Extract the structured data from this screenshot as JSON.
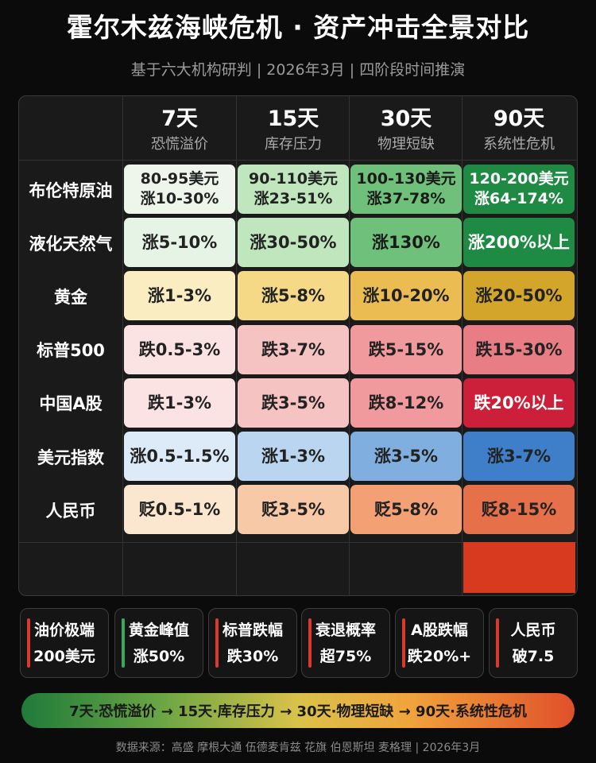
{
  "header": {
    "title": "霍尔木兹海峡危机 · 资产冲击全景对比",
    "subtitle": "基于六大机构研判 | 2026年3月 | 四阶段时间推演"
  },
  "columns": [
    {
      "day": "7天",
      "phase": "恐慌溢价"
    },
    {
      "day": "15天",
      "phase": "库存压力"
    },
    {
      "day": "30天",
      "phase": "物理短缺"
    },
    {
      "day": "90天",
      "phase": "系统性危机"
    }
  ],
  "rows": [
    {
      "label": "布伦特原油",
      "cells": [
        {
          "l1": "80-95美元",
          "l2": "涨10-30%",
          "bg": "#eef6ec",
          "fg": "#222"
        },
        {
          "l1": "90-110美元",
          "l2": "涨23-51%",
          "bg": "#bfe6bd",
          "fg": "#222"
        },
        {
          "l1": "100-130美元",
          "l2": "涨37-78%",
          "bg": "#6ec07a",
          "fg": "#1a1a1a"
        },
        {
          "l1": "120-200美元",
          "l2": "涨64-174%",
          "bg": "#1f8a44",
          "fg": "#ffffff"
        }
      ]
    },
    {
      "label": "液化天然气",
      "cells": [
        {
          "l1": "涨5-10%",
          "bg": "#e6f4e6",
          "fg": "#222"
        },
        {
          "l1": "涨30-50%",
          "bg": "#bfe6bd",
          "fg": "#222"
        },
        {
          "l1": "涨130%",
          "bg": "#6ec07a",
          "fg": "#1a1a1a"
        },
        {
          "l1": "涨200%以上",
          "bg": "#1f8a44",
          "fg": "#ffffff"
        }
      ]
    },
    {
      "label": "黄金",
      "cells": [
        {
          "l1": "涨1-3%",
          "bg": "#fbedc2",
          "fg": "#222"
        },
        {
          "l1": "涨5-8%",
          "bg": "#f6d986",
          "fg": "#222"
        },
        {
          "l1": "涨10-20%",
          "bg": "#ebbc52",
          "fg": "#222"
        },
        {
          "l1": "涨20-50%",
          "bg": "#d3a52a",
          "fg": "#222"
        }
      ]
    },
    {
      "label": "标普500",
      "cells": [
        {
          "l1": "跌0.5-3%",
          "bg": "#fbe3e3",
          "fg": "#222"
        },
        {
          "l1": "跌3-7%",
          "bg": "#f6c3c3",
          "fg": "#222"
        },
        {
          "l1": "跌5-15%",
          "bg": "#f09a9e",
          "fg": "#222"
        },
        {
          "l1": "跌15-30%",
          "bg": "#e87d86",
          "fg": "#222"
        }
      ]
    },
    {
      "label": "中国A股",
      "cells": [
        {
          "l1": "跌1-3%",
          "bg": "#fbe3e3",
          "fg": "#222"
        },
        {
          "l1": "跌3-5%",
          "bg": "#f6c3c3",
          "fg": "#222"
        },
        {
          "l1": "跌8-12%",
          "bg": "#f09a9e",
          "fg": "#222"
        },
        {
          "l1": "跌20%以上",
          "bg": "#cc1f3a",
          "fg": "#ffffff"
        }
      ]
    },
    {
      "label": "美元指数",
      "cells": [
        {
          "l1": "涨0.5-1.5%",
          "bg": "#ddeaf8",
          "fg": "#222"
        },
        {
          "l1": "涨1-3%",
          "bg": "#b9d5f0",
          "fg": "#222"
        },
        {
          "l1": "涨3-5%",
          "bg": "#7faedf",
          "fg": "#222"
        },
        {
          "l1": "涨3-7%",
          "bg": "#3f7ec8",
          "fg": "#222"
        }
      ]
    },
    {
      "label": "人民币",
      "cells": [
        {
          "l1": "贬0.5-1%",
          "bg": "#fbe6d0",
          "fg": "#222"
        },
        {
          "l1": "贬3-5%",
          "bg": "#f8c9a6",
          "fg": "#222"
        },
        {
          "l1": "贬5-8%",
          "bg": "#f2a074",
          "fg": "#222"
        },
        {
          "l1": "贬8-15%",
          "bg": "#e6704a",
          "fg": "#222"
        }
      ]
    }
  ],
  "cards": [
    {
      "l1": "油价极端",
      "l2": "200美元",
      "accent": "#d83a2e"
    },
    {
      "l1": "黄金峰值",
      "l2": "涨50%",
      "accent": "#3aa856"
    },
    {
      "l1": "标普跌幅",
      "l2": "跌30%",
      "accent": "#d83a2e"
    },
    {
      "l1": "衰退概率",
      "l2": "超75%",
      "accent": "#d83a2e"
    },
    {
      "l1": "A股跌幅",
      "l2": "跌20%+",
      "accent": "#d83a2e"
    },
    {
      "l1": "人民币",
      "l2": "破7.5",
      "accent": "#d83a2e"
    }
  ],
  "timeline": {
    "text": "7天·恐慌溢价 → 15天·库存压力 → 30天·物理短缺 → 90天·系统性危机"
  },
  "footer": {
    "text": "数据来源：高盛 摩根大通 伍德麦肯兹 花旗 伯恩斯坦 麦格理 | 2026年3月"
  }
}
